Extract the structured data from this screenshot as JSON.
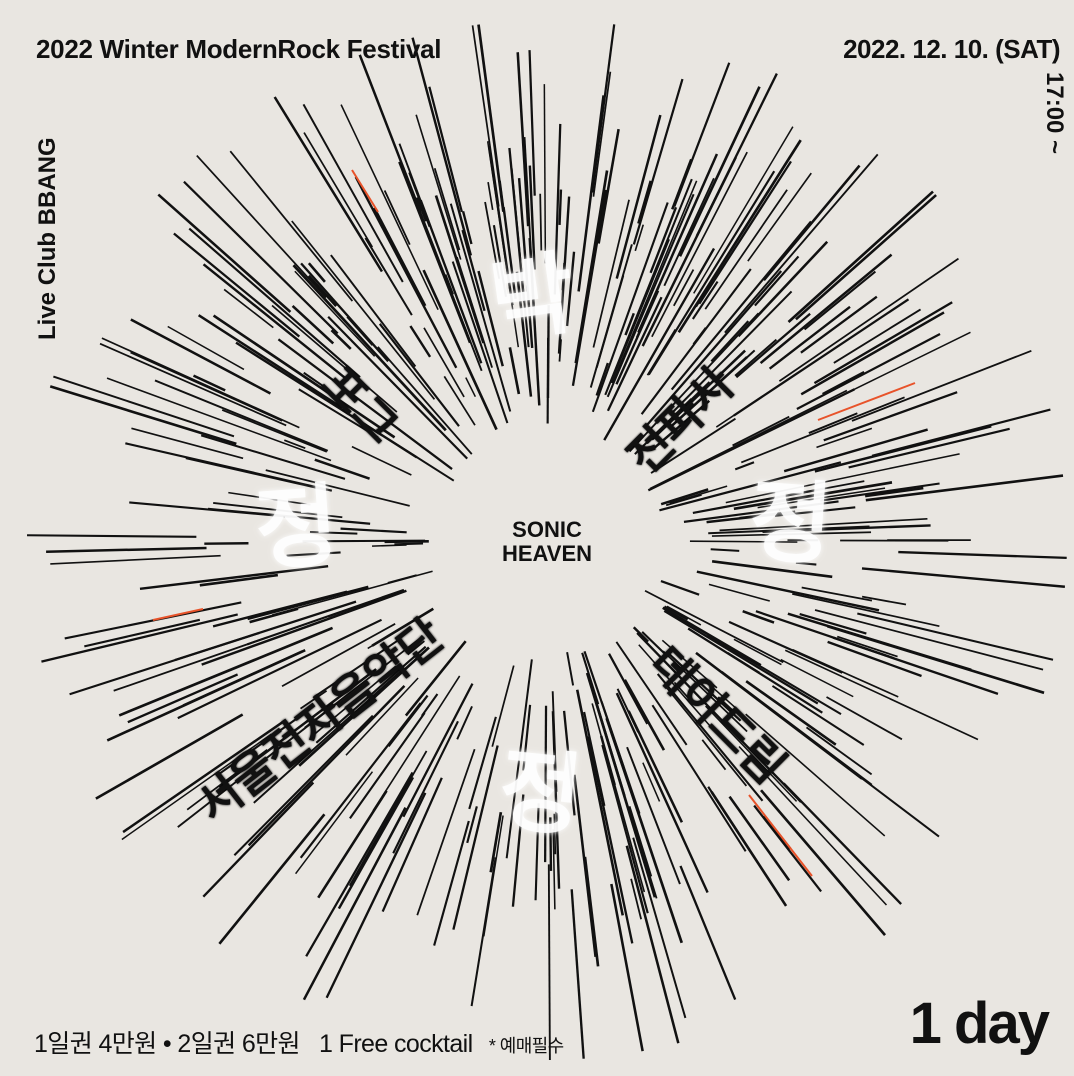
{
  "header": {
    "title": "2022 Winter ModernRock Festival",
    "date": "2022. 12. 10. (SAT)",
    "time": "17:00 ~",
    "venue": "Live Club BBANG"
  },
  "center": {
    "line1": "SONIC",
    "line2": "HEAVEN"
  },
  "bands": [
    "포그",
    "전파사",
    "데이드림",
    "서울전자음악단"
  ],
  "footer": {
    "tickets": "1일권 4만원 • 2일권 6만원",
    "cocktail": "1 Free cocktail",
    "note": "* 예매필수",
    "badge": "1 day"
  },
  "colors": {
    "background": "#e9e6e1",
    "lines": "#111111",
    "accent": "#e8532a"
  }
}
